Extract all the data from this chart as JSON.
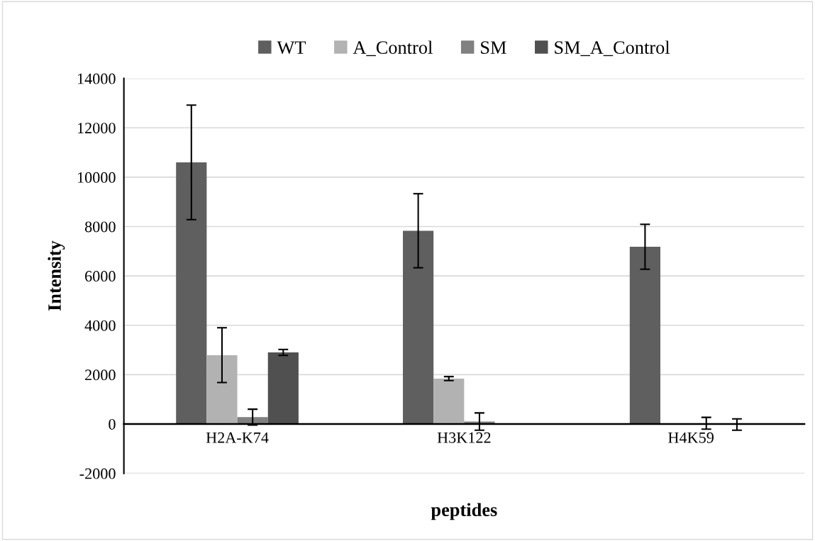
{
  "chart_data": {
    "type": "bar",
    "xlabel": "peptides",
    "ylabel": "Intensity",
    "categories": [
      "H2A-K74",
      "H3K122",
      "H4K59"
    ],
    "series": [
      {
        "name": "WT",
        "color": "#5f5f5f",
        "values": [
          10600,
          7830,
          7180
        ],
        "errors": [
          2320,
          1500,
          910
        ]
      },
      {
        "name": "A_Control",
        "color": "#b2b2b2",
        "values": [
          2790,
          1840,
          0
        ],
        "errors": [
          1110,
          80,
          null
        ]
      },
      {
        "name": "SM",
        "color": "#808080",
        "values": [
          280,
          100,
          30
        ],
        "errors": [
          320,
          350,
          240
        ]
      },
      {
        "name": "SM_A_Control",
        "color": "#505050",
        "values": [
          2900,
          0,
          -20
        ],
        "errors": [
          120,
          null,
          230
        ]
      }
    ],
    "ylim": [
      -2000,
      14000
    ],
    "yticks": [
      -2000,
      0,
      2000,
      4000,
      6000,
      8000,
      10000,
      12000,
      14000
    ],
    "grid": "y",
    "legend": "top"
  }
}
